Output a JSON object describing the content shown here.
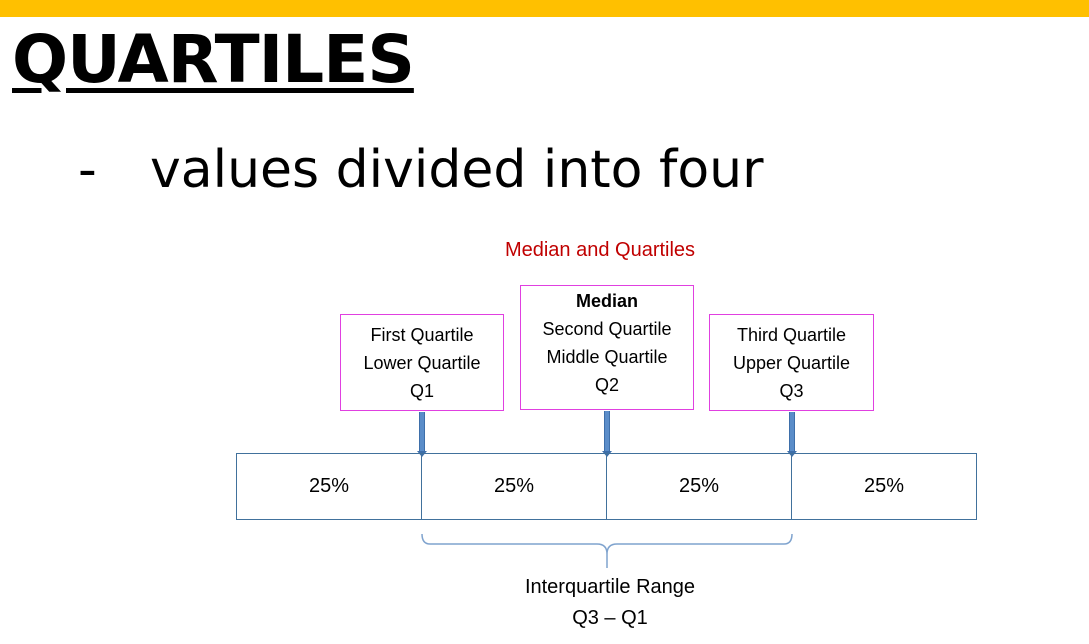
{
  "slide": {
    "title": "QUARTILES",
    "bullet_marker": "-",
    "bullet_text": "values divided into four",
    "accent_color": "#FFC000"
  },
  "diagram": {
    "title": "Median and Quartiles",
    "title_color": "#C00000",
    "boxes": {
      "q1": {
        "lines": [
          "First Quartile",
          "Lower Quartile",
          "Q1"
        ]
      },
      "q2": {
        "heading": "Median",
        "lines": [
          "Second Quartile",
          "Middle Quartile",
          "Q2"
        ]
      },
      "q3": {
        "lines": [
          "Third Quartile",
          "Upper Quartile",
          "Q3"
        ]
      }
    },
    "box_border_color": "#E040E0",
    "segments": [
      "25%",
      "25%",
      "25%",
      "25%"
    ],
    "segment_border_color": "#41719C",
    "arrow_color": "#5B8DC9",
    "iqr": {
      "label": "Interquartile Range",
      "formula": "Q3 – Q1"
    }
  }
}
